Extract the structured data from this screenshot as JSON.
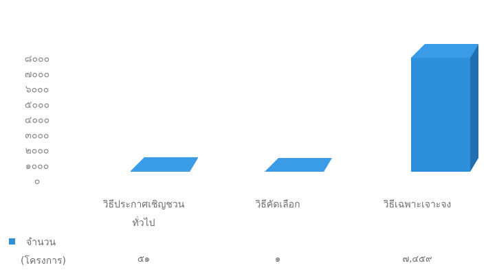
{
  "chart_data": {
    "type": "bar",
    "style": "3d-column",
    "categories": [
      [
        "วิธีประกาศเชิญชวน",
        "ทั่วไป"
      ],
      [
        "วิธีคัดเลือก"
      ],
      [
        "วิธีเฉพาะเจาะจง"
      ]
    ],
    "series": [
      {
        "name": [
          "จำนวน",
          "(โครงการ)"
        ],
        "values": [
          51,
          1,
          7459
        ],
        "value_labels": [
          "๕๑",
          "๑",
          "๗,๔๕๙"
        ],
        "color": "#2e8fdb"
      }
    ],
    "yticks": [
      0,
      1000,
      2000,
      3000,
      4000,
      5000,
      6000,
      7000,
      8000
    ],
    "ytick_labels": [
      "๐",
      "๑๐๐๐",
      "๒๐๐๐",
      "๓๐๐๐",
      "๔๐๐๐",
      "๕๐๐๐",
      "๖๐๐๐",
      "๗๐๐๐",
      "๘๐๐๐"
    ],
    "ylim": [
      0,
      8000
    ],
    "grid": false,
    "legend": "bottom-left table",
    "title": "",
    "xlabel": "",
    "ylabel": ""
  }
}
